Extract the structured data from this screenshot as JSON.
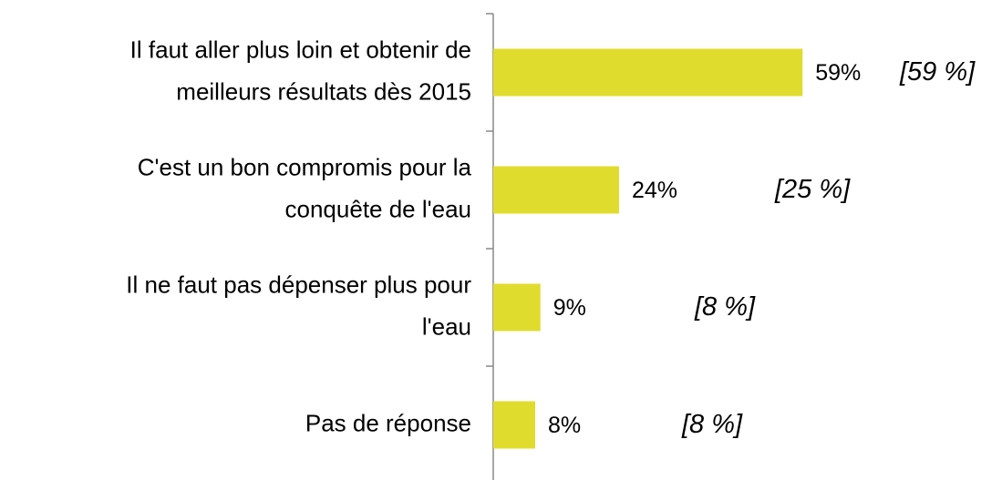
{
  "chart_data": {
    "type": "bar",
    "orientation": "horizontal",
    "categories": [
      "Il faut aller plus loin et obtenir de\nmeilleurs résultats dès 2015",
      "C'est un bon compromis pour la\nconquête de l'eau",
      "Il ne faut pas dépenser plus pour\nl'eau",
      "Pas de réponse"
    ],
    "values": [
      59,
      24,
      9,
      8
    ],
    "value_labels": [
      "59%",
      "24%",
      "9%",
      "8%"
    ],
    "annotations": [
      "[59 %]",
      "[25 %]",
      "[8 %]",
      "[8 %]"
    ],
    "color": "#e0dc2e"
  }
}
